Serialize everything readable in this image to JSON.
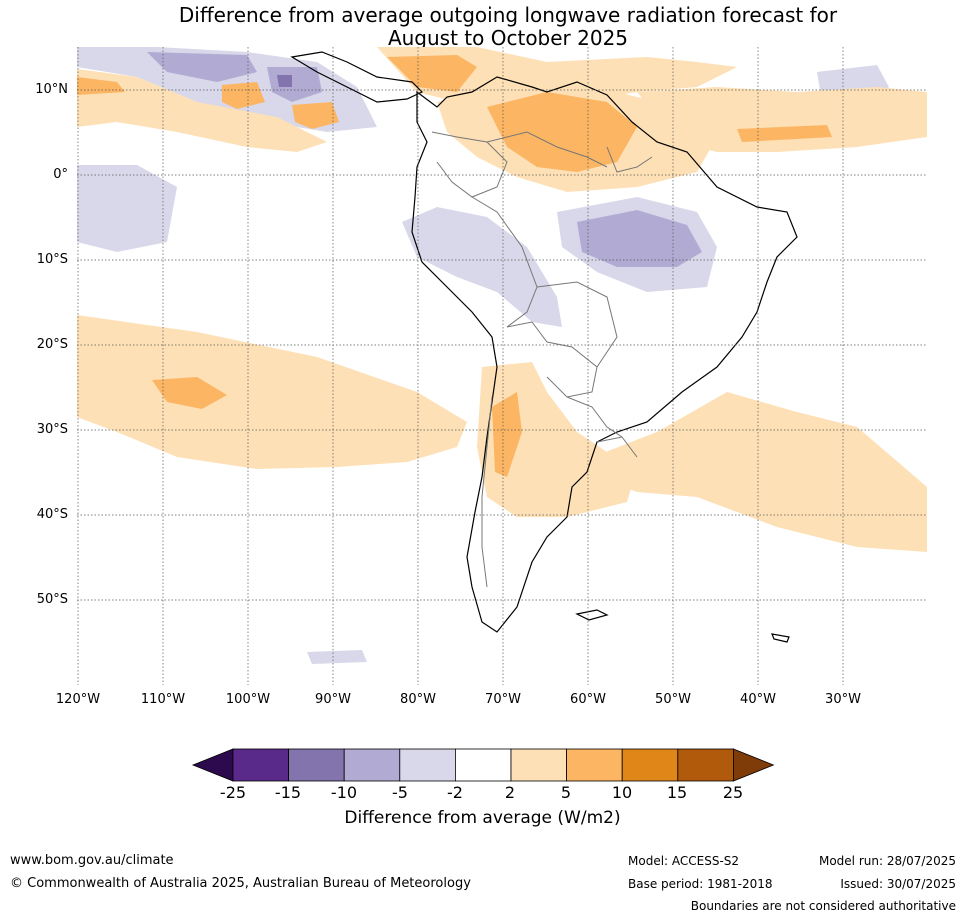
{
  "title_line1": "Difference from average outgoing longwave radiation forecast for",
  "title_line2": "August to October 2025",
  "lat_labels": [
    "10°N",
    "0°",
    "10°S",
    "20°S",
    "30°S",
    "40°S",
    "50°S"
  ],
  "lon_labels": [
    "120°W",
    "110°W",
    "100°W",
    "90°W",
    "80°W",
    "70°W",
    "60°W",
    "50°W",
    "40°W",
    "30°W"
  ],
  "colorbar": {
    "ticks": [
      "-25",
      "-15",
      "-10",
      "-5",
      "-2",
      "2",
      "5",
      "10",
      "15",
      "25"
    ],
    "colors": [
      "#2d0a4e",
      "#5a2a8a",
      "#8474ad",
      "#b1aad2",
      "#d8d8ea",
      "#ffffff",
      "#fde0b5",
      "#fbb563",
      "#e08618",
      "#b25a0c",
      "#7f3b08"
    ],
    "label": "Difference from average (W/m2)"
  },
  "footer": {
    "website": "www.bom.gov.au/climate",
    "copyright": "© Commonwealth of Australia 2025, Australian Bureau of Meteorology",
    "model": "Model: ACCESS-S2",
    "base_period": "Base period: 1981-2018",
    "model_run": "Model run: 28/07/2025",
    "issued": "Issued: 30/07/2025",
    "disclaimer": "Boundaries are not considered authoritative"
  }
}
